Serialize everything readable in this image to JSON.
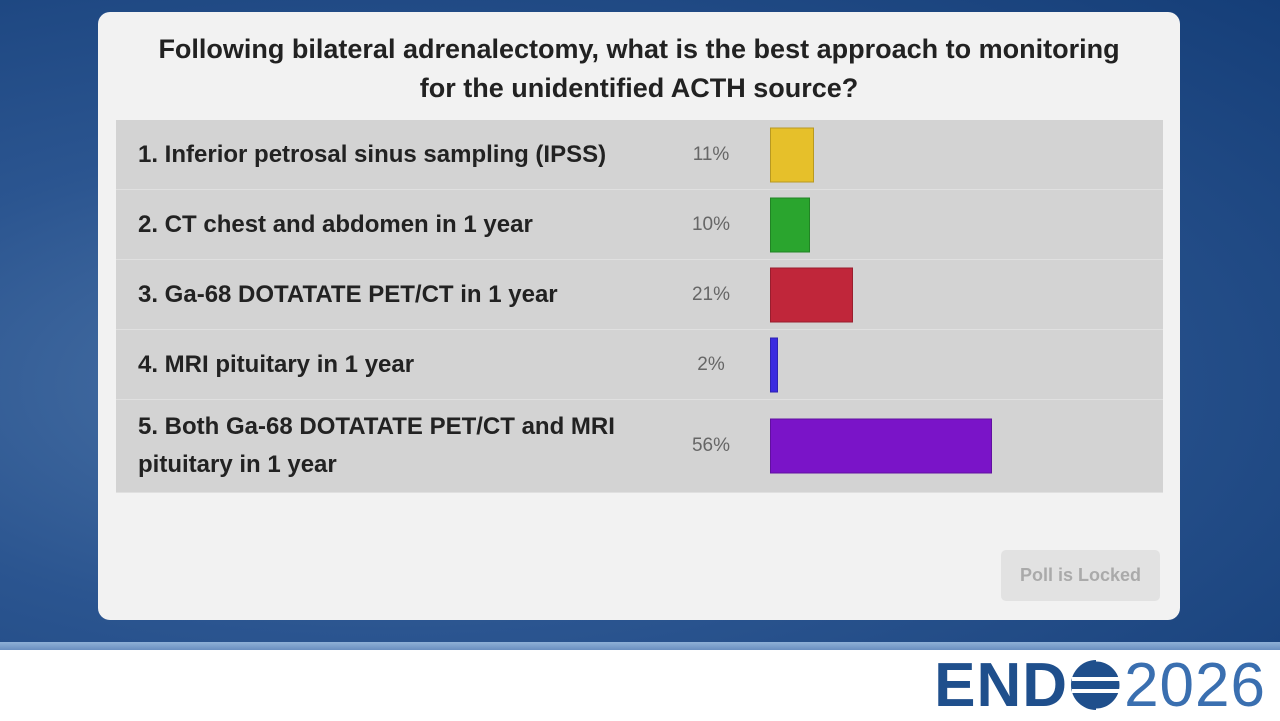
{
  "chart_data": {
    "type": "bar",
    "title": "Following bilateral adrenalectomy, what is the best approach to monitoring for the unidentified ACTH source?",
    "categories": [
      "1. Inferior petrosal sinus sampling (IPSS)",
      "2. CT chest and abdomen in 1 year",
      "3. Ga-68 DOTATATE PET/CT in 1 year",
      "4. MRI pituitary in 1 year",
      "5. Both Ga-68 DOTATATE PET/CT and MRI pituitary in 1 year"
    ],
    "values": [
      11,
      10,
      21,
      2,
      56
    ],
    "value_labels": [
      "11%",
      "10%",
      "21%",
      "2%",
      "56%"
    ],
    "colors": [
      "#e6c02a",
      "#2aa52e",
      "#c0263a",
      "#3a2be0",
      "#7a14c8"
    ]
  },
  "button": "Poll is Locked",
  "logo": {
    "left": "END",
    "right": "2026"
  }
}
